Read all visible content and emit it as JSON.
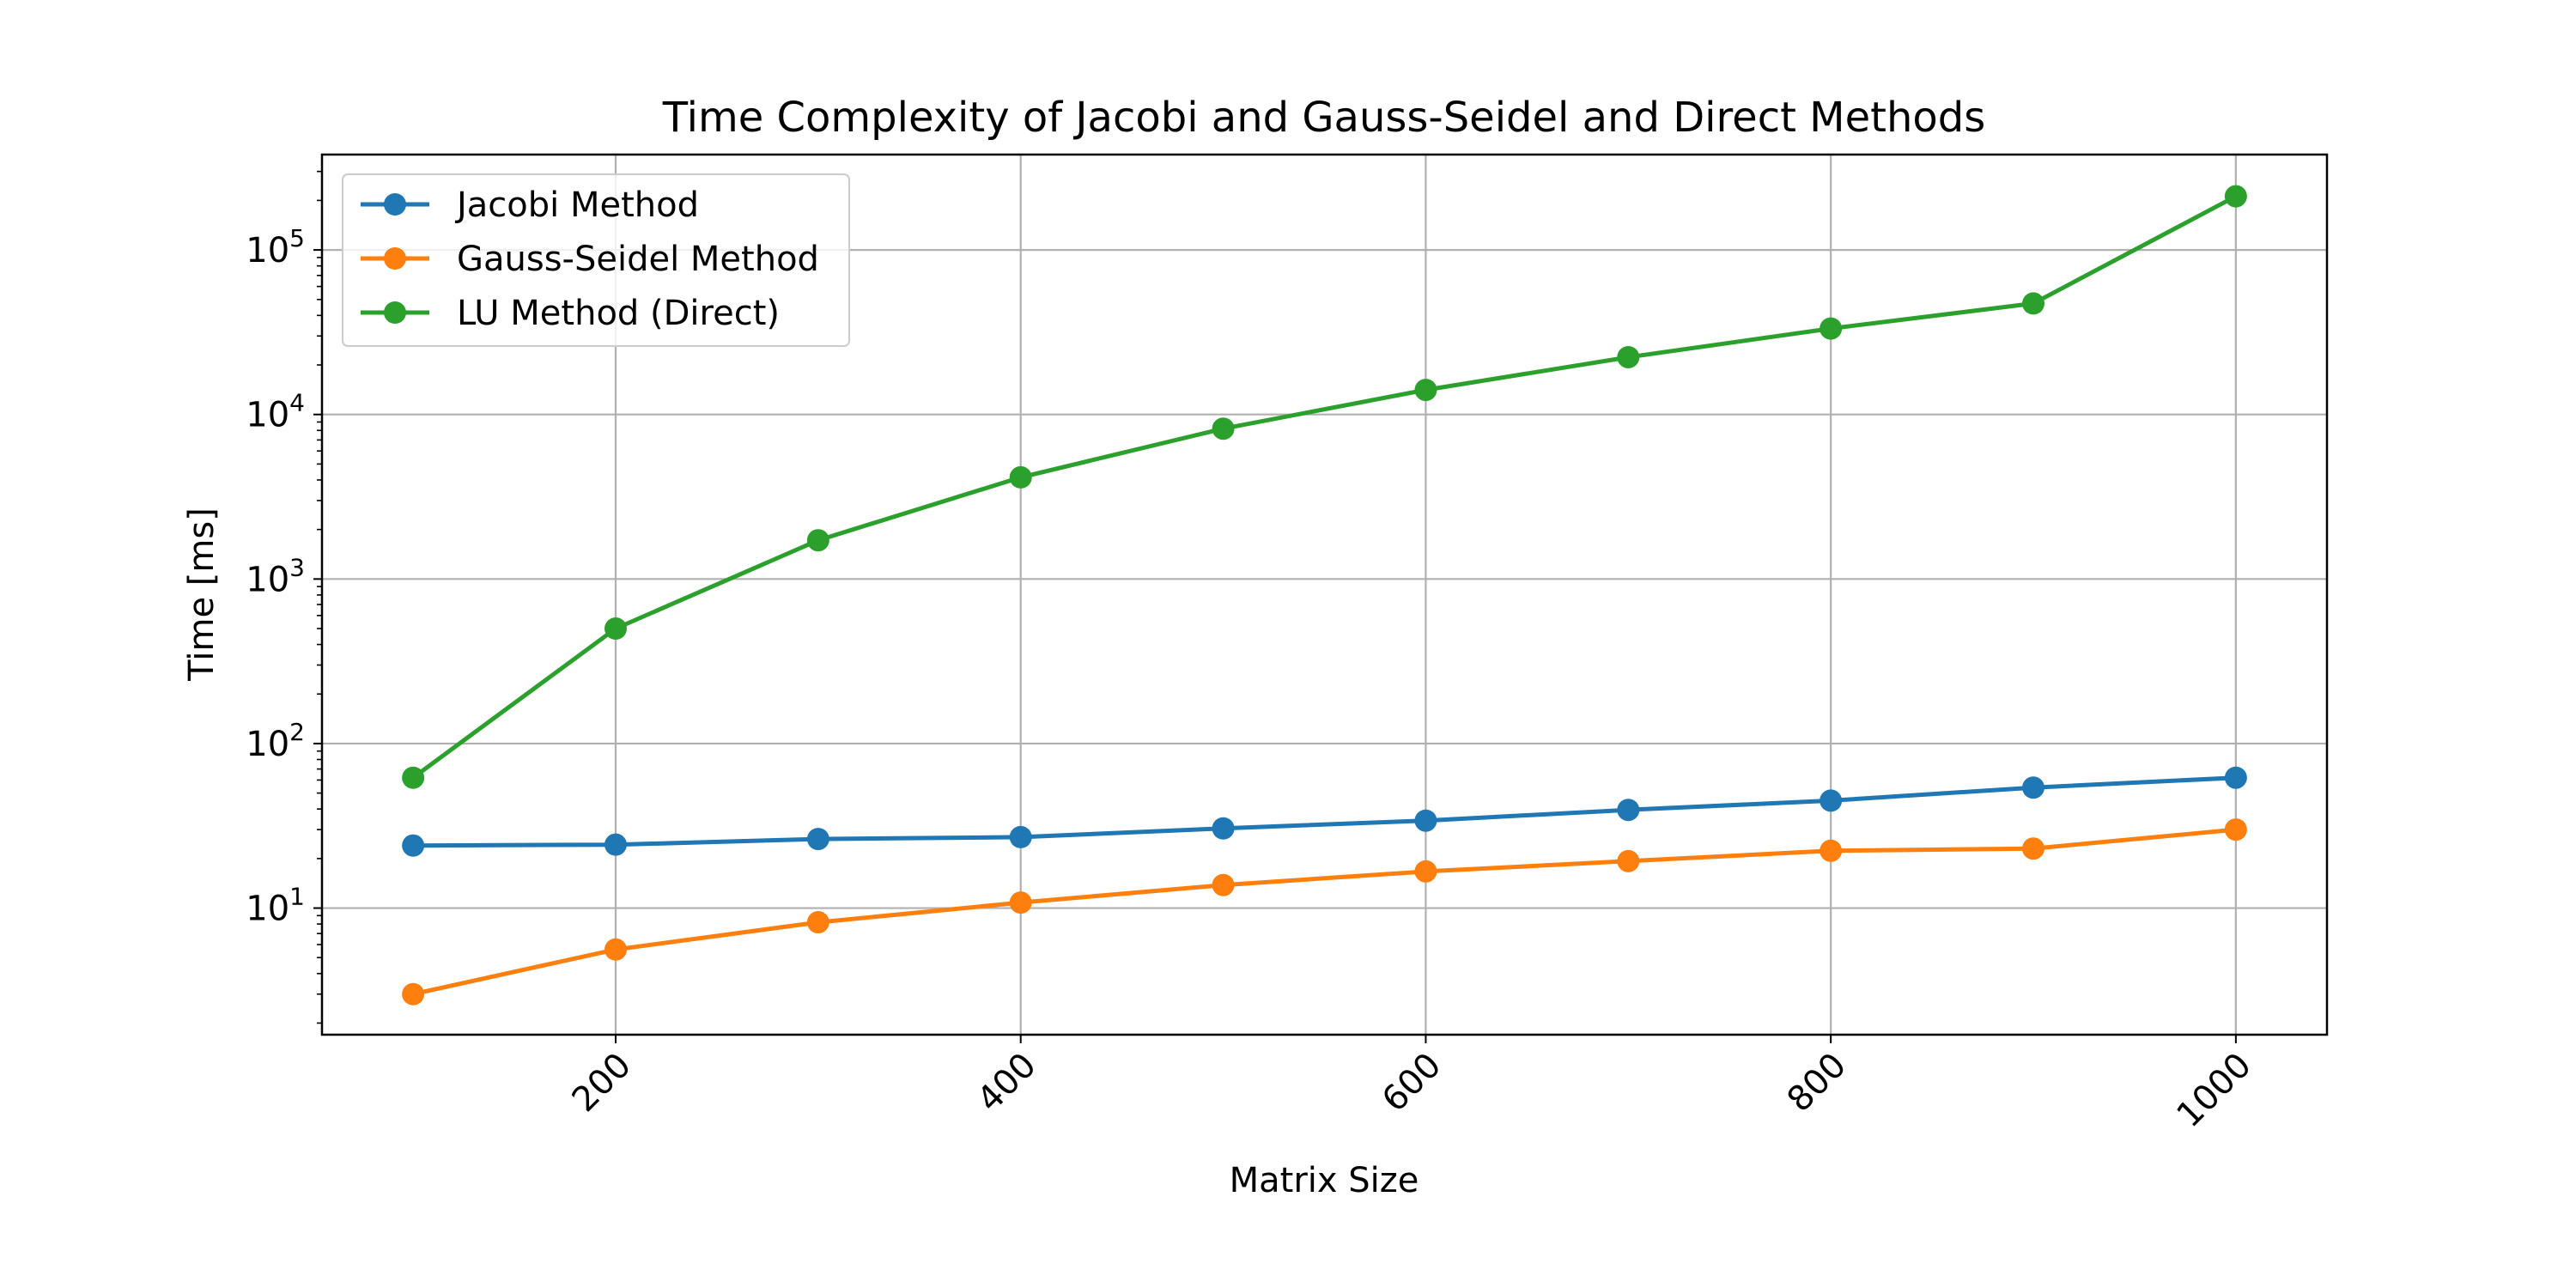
{
  "chart_data": {
    "type": "line",
    "title": "Time Complexity of Jacobi and Gauss-Seidel and Direct Methods",
    "xlabel": "Matrix Size",
    "ylabel": "Time [ms]",
    "xscale": "linear",
    "yscale": "log",
    "xlim": [
      55,
      1045
    ],
    "ylim": [
      1.7,
      380000
    ],
    "grid": true,
    "legend_position": "upper-left",
    "x": [
      100,
      200,
      300,
      400,
      500,
      600,
      700,
      800,
      900,
      1000
    ],
    "x_ticks": [
      {
        "value": 200,
        "label": "200"
      },
      {
        "value": 400,
        "label": "400"
      },
      {
        "value": 600,
        "label": "600"
      },
      {
        "value": 800,
        "label": "800"
      },
      {
        "value": 1000,
        "label": "1000"
      }
    ],
    "y_ticks": [
      {
        "value": 10,
        "base": "10",
        "exp": "1"
      },
      {
        "value": 100,
        "base": "10",
        "exp": "2"
      },
      {
        "value": 1000,
        "base": "10",
        "exp": "3"
      },
      {
        "value": 10000,
        "base": "10",
        "exp": "4"
      },
      {
        "value": 100000,
        "base": "10",
        "exp": "5"
      }
    ],
    "series": [
      {
        "name": "Jacobi Method",
        "color": "#1f77b4",
        "values": [
          24,
          24.3,
          26.3,
          27,
          30.5,
          34,
          39.5,
          45,
          54,
          62
        ]
      },
      {
        "name": "Gauss-Seidel Method",
        "color": "#ff7f0e",
        "values": [
          3.0,
          5.6,
          8.2,
          10.8,
          13.8,
          16.7,
          19.3,
          22.3,
          23,
          30
        ]
      },
      {
        "name": "LU Method (Direct)",
        "color": "#2ca02c",
        "values": [
          62,
          500,
          1720,
          4150,
          8200,
          14100,
          22300,
          33300,
          47300,
          212000
        ]
      }
    ]
  }
}
